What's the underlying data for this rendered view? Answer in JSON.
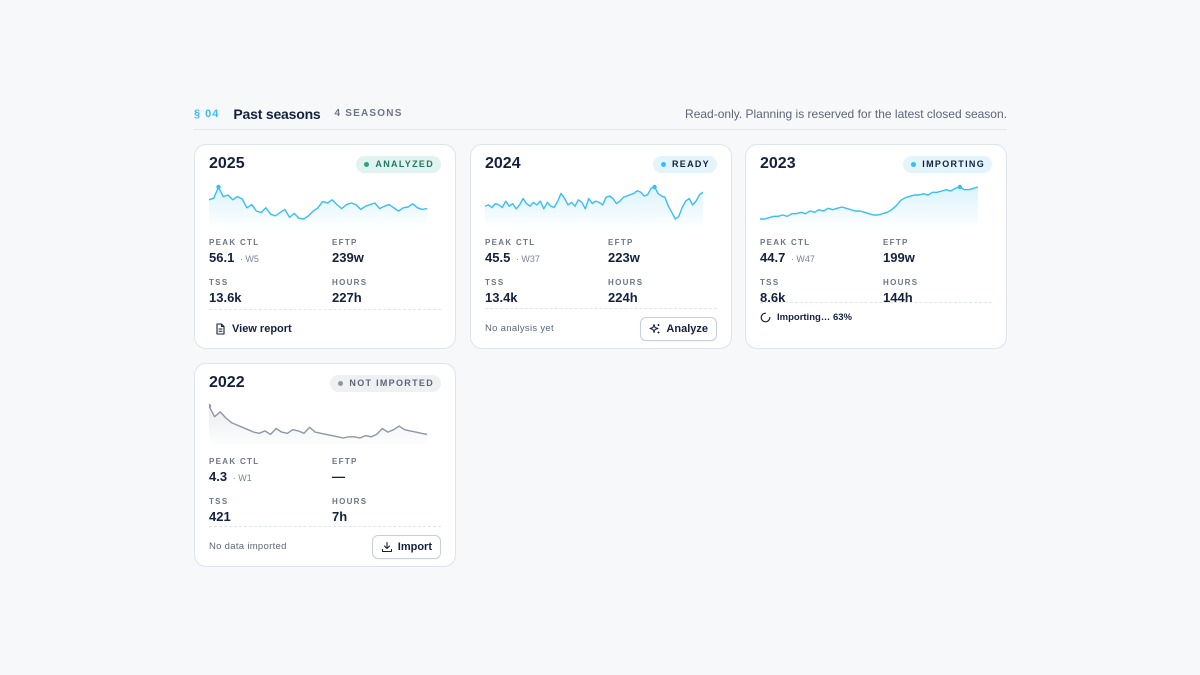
{
  "section": {
    "number": "§ 04",
    "title": "Past seasons",
    "count": "4 SEASONS",
    "note": "Read-only. Planning is reserved for the latest closed season."
  },
  "labels": {
    "peak_ctl": "PEAK CTL",
    "eftp": "EFTP",
    "tss": "TSS",
    "hours": "HOURS"
  },
  "seasons": [
    {
      "year": "2025",
      "status": "ANALYZED",
      "status_kind": "analyzed",
      "peak_ctl": "56.1",
      "peak_week": "· W5",
      "eftp": "239w",
      "tss": "13.6k",
      "hours": "227h",
      "action_label": "View report",
      "action_icon": "document-icon",
      "line_color": "#38bdf8",
      "sparkline": [
        40,
        42,
        56,
        44,
        46,
        40,
        44,
        41,
        30,
        34,
        26,
        24,
        30,
        22,
        20,
        24,
        28,
        18,
        23,
        17,
        16,
        20,
        26,
        30,
        38,
        36,
        40,
        34,
        29,
        34,
        36,
        34,
        28,
        32,
        34,
        36,
        29,
        32,
        34,
        30,
        26,
        30,
        31,
        35,
        30,
        28,
        29
      ]
    },
    {
      "year": "2024",
      "status": "READY",
      "status_kind": "ready",
      "peak_ctl": "45.5",
      "peak_week": "· W37",
      "eftp": "223w",
      "tss": "13.4k",
      "hours": "224h",
      "footer_note": "No analysis yet",
      "action_label": "Analyze",
      "action_icon": "sparkle-icon",
      "line_color": "#38bdf8",
      "sparkline": [
        30,
        31,
        29,
        32,
        31,
        29,
        34,
        30,
        32,
        28,
        31,
        36,
        32,
        30,
        33,
        31,
        34,
        28,
        33,
        30,
        29,
        34,
        40,
        36,
        31,
        33,
        30,
        35,
        33,
        28,
        36,
        32,
        34,
        33,
        31,
        37,
        38,
        36,
        32,
        34,
        37,
        38,
        39,
        40,
        42,
        41,
        38,
        39,
        44,
        45,
        40,
        38,
        37,
        30,
        25,
        20,
        22,
        29,
        34,
        36,
        31,
        34,
        39,
        41
      ]
    },
    {
      "year": "2023",
      "status": "IMPORTING",
      "status_kind": "importing",
      "peak_ctl": "44.7",
      "peak_week": "· W47",
      "eftp": "199w",
      "tss": "8.6k",
      "hours": "144h",
      "progress_label": "Importing… 63%",
      "progress": 0.63,
      "line_color": "#38bdf8",
      "sparkline": [
        20,
        20,
        21,
        22,
        22,
        23,
        22,
        24,
        24,
        25,
        24,
        26,
        25,
        27,
        26,
        28,
        27,
        28,
        29,
        28,
        27,
        26,
        26,
        25,
        24,
        23,
        23,
        24,
        25,
        27,
        30,
        34,
        36,
        37,
        38,
        38,
        39,
        38,
        40,
        40,
        41,
        42,
        41,
        43,
        44,
        42,
        42,
        43,
        44
      ]
    },
    {
      "year": "2022",
      "status": "NOT IMPORTED",
      "status_kind": "notimp",
      "peak_ctl": "4.3",
      "peak_week": "· W1",
      "eftp": "—",
      "tss": "421",
      "hours": "7h",
      "footer_note": "No data imported",
      "action_label": "Import",
      "action_icon": "download-icon",
      "line_color": "#8e97a7",
      "sparkline": [
        4.3,
        3.4,
        3.8,
        3.3,
        2.9,
        2.7,
        2.5,
        2.3,
        2.1,
        2.0,
        2.2,
        1.9,
        2.4,
        2.1,
        2.0,
        2.3,
        2.2,
        2.0,
        2.5,
        2.1,
        2.0,
        1.9,
        1.8,
        1.7,
        1.6,
        1.7,
        1.7,
        1.6,
        1.8,
        1.7,
        1.9,
        2.4,
        2.1,
        2.3,
        2.6,
        2.3,
        2.2,
        2.1,
        2.0,
        1.9
      ]
    }
  ]
}
